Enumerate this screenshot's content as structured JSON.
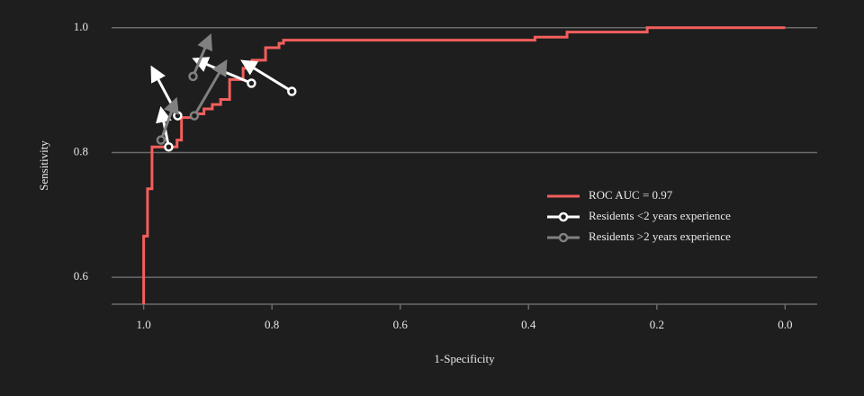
{
  "chart_data": {
    "type": "roc",
    "x_label": "1-Specificity",
    "y_label": "Sensitivity",
    "xlim": [
      1.05,
      -0.05
    ],
    "ylim": [
      0.557,
      1.03
    ],
    "xticks": [
      {
        "value": 1.0,
        "label": "1.0"
      },
      0.8,
      0.6,
      0.4,
      0.2,
      {
        "value": 0.0,
        "label": "0.0"
      }
    ],
    "yticks": [
      {
        "value": 1.0,
        "label": "1.0"
      },
      0.8,
      0.6
    ],
    "grid": true,
    "legend": "right",
    "series": [
      {
        "name": "ROC AUC = 0.97",
        "color": "#f25f5c",
        "kind": "step",
        "x": [
          1.0,
          1.0,
          0.994,
          0.994,
          0.987,
          0.987,
          0.948,
          0.948,
          0.941,
          0.941,
          0.92,
          0.92,
          0.906,
          0.906,
          0.893,
          0.893,
          0.88,
          0.88,
          0.866,
          0.866,
          0.845,
          0.845,
          0.831,
          0.831,
          0.81,
          0.81,
          0.789,
          0.789,
          0.782,
          0.782,
          0.39,
          0.39,
          0.34,
          0.34,
          0.215,
          0.215,
          0.0
        ],
        "values": [
          0.557,
          0.666,
          0.666,
          0.742,
          0.742,
          0.809,
          0.809,
          0.82,
          0.82,
          0.856,
          0.856,
          0.862,
          0.862,
          0.87,
          0.87,
          0.877,
          0.877,
          0.885,
          0.885,
          0.917,
          0.917,
          0.935,
          0.935,
          0.948,
          0.948,
          0.968,
          0.968,
          0.975,
          0.975,
          0.98,
          0.98,
          0.985,
          0.985,
          0.993,
          0.993,
          1.0,
          1.0
        ]
      },
      {
        "name": "Residents <2 years experience",
        "color": "#ffffff",
        "kind": "arrows",
        "x": [
          0.961,
          0.947,
          0.832,
          0.769
        ],
        "values": [
          0.809,
          0.859,
          0.911,
          0.898
        ],
        "x_end": [
          0.972,
          0.985,
          0.917,
          0.842
        ],
        "values_end": [
          0.866,
          0.932,
          0.948,
          0.944
        ]
      },
      {
        "name": "Residents >2 years experience",
        "color": "#808080",
        "kind": "arrows",
        "x": [
          0.973,
          0.921,
          0.923
        ],
        "values": [
          0.82,
          0.859,
          0.922
        ],
        "x_end": [
          0.951,
          0.874,
          0.898
        ],
        "values_end": [
          0.881,
          0.942,
          0.983
        ]
      }
    ]
  }
}
